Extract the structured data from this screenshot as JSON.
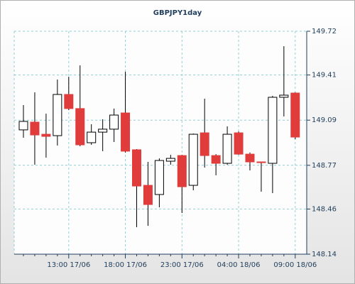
{
  "chart_data": {
    "type": "candlestick",
    "title": "GBPJPY1day",
    "categories": [
      null,
      null,
      null,
      null,
      "13:00 17/06",
      null,
      null,
      null,
      null,
      "18:00 17/06",
      null,
      null,
      null,
      null,
      "23:00 17/06",
      null,
      null,
      null,
      null,
      "04:00 18/06",
      null,
      null,
      null,
      null,
      "09:00 18/06"
    ],
    "open": [
      149.021,
      149.076,
      148.99,
      148.98,
      149.272,
      149.172,
      148.93,
      149.005,
      149.026,
      149.141,
      148.88,
      148.628,
      148.563,
      148.799,
      148.839,
      148.628,
      149.0,
      148.839,
      148.784,
      149.0,
      148.849,
      148.794,
      148.784,
      149.252,
      149.282
    ],
    "high": [
      149.197,
      149.287,
      149.136,
      149.378,
      149.398,
      149.478,
      149.061,
      149.096,
      149.172,
      149.433,
      148.885,
      148.794,
      148.819,
      148.844,
      148.844,
      148.995,
      149.242,
      148.849,
      149.046,
      149.01,
      148.86,
      148.794,
      149.262,
      149.614,
      149.287
    ],
    "low": [
      148.965,
      148.774,
      148.824,
      148.91,
      149.161,
      148.905,
      148.915,
      148.87,
      148.935,
      148.86,
      148.331,
      148.341,
      148.472,
      148.774,
      148.432,
      148.593,
      148.754,
      148.699,
      148.774,
      148.844,
      148.734,
      148.583,
      148.573,
      149.116,
      148.955
    ],
    "close": [
      149.081,
      148.985,
      148.975,
      149.272,
      149.172,
      148.915,
      149.005,
      149.026,
      149.126,
      148.87,
      148.623,
      148.492,
      148.804,
      148.819,
      148.618,
      148.99,
      148.839,
      148.784,
      148.99,
      148.849,
      148.794,
      148.789,
      149.252,
      149.267,
      148.97
    ],
    "up_color": "#ffffff",
    "down_color": "#e03c3c",
    "ylim": [
      148.14,
      149.72
    ],
    "yticks": [
      148.14,
      148.46,
      148.77,
      149.09,
      149.41,
      149.72
    ],
    "grid": true
  }
}
